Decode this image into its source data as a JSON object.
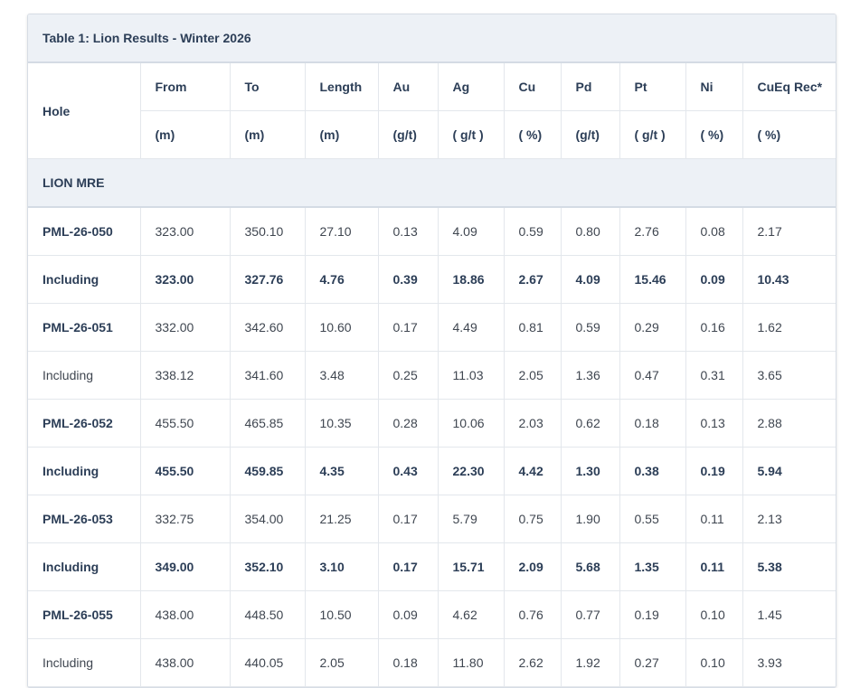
{
  "table": {
    "title": "Table 1: Lion Results - Winter 2026",
    "hole_header": "Hole",
    "columns": [
      {
        "name": "From",
        "unit": "(m)"
      },
      {
        "name": "To",
        "unit": "(m)"
      },
      {
        "name": "Length",
        "unit": "(m)"
      },
      {
        "name": "Au",
        "unit": "(g/t)"
      },
      {
        "name": "Ag",
        "unit": "( g/t )"
      },
      {
        "name": "Cu",
        "unit": "( %)"
      },
      {
        "name": "Pd",
        "unit": "(g/t)"
      },
      {
        "name": "Pt",
        "unit": "( g/t )"
      },
      {
        "name": "Ni",
        "unit": "( %)"
      },
      {
        "name": "CuEq Rec*",
        "unit": "( %)"
      }
    ],
    "section_label": "LION MRE",
    "rows": [
      {
        "hole": "PML-26-050",
        "bold": false,
        "values": [
          "323.00",
          "350.10",
          "27.10",
          "0.13",
          "4.09",
          "0.59",
          "0.80",
          "2.76",
          "0.08",
          "2.17"
        ]
      },
      {
        "hole": "Including",
        "bold": true,
        "values": [
          "323.00",
          "327.76",
          "4.76",
          "0.39",
          "18.86",
          "2.67",
          "4.09",
          "15.46",
          "0.09",
          "10.43"
        ]
      },
      {
        "hole": "PML-26-051",
        "bold": false,
        "values": [
          "332.00",
          "342.60",
          "10.60",
          "0.17",
          "4.49",
          "0.81",
          "0.59",
          "0.29",
          "0.16",
          "1.62"
        ]
      },
      {
        "hole": "Including",
        "bold": false,
        "plain": true,
        "values": [
          "338.12",
          "341.60",
          "3.48",
          "0.25",
          "11.03",
          "2.05",
          "1.36",
          "0.47",
          "0.31",
          "3.65"
        ]
      },
      {
        "hole": "PML-26-052",
        "bold": false,
        "values": [
          "455.50",
          "465.85",
          "10.35",
          "0.28",
          "10.06",
          "2.03",
          "0.62",
          "0.18",
          "0.13",
          "2.88"
        ]
      },
      {
        "hole": "Including",
        "bold": true,
        "values": [
          "455.50",
          "459.85",
          "4.35",
          "0.43",
          "22.30",
          "4.42",
          "1.30",
          "0.38",
          "0.19",
          "5.94"
        ]
      },
      {
        "hole": "PML-26-053",
        "bold": false,
        "values": [
          "332.75",
          "354.00",
          "21.25",
          "0.17",
          "5.79",
          "0.75",
          "1.90",
          "0.55",
          "0.11",
          "2.13"
        ]
      },
      {
        "hole": "Including",
        "bold": true,
        "values": [
          "349.00",
          "352.10",
          "3.10",
          "0.17",
          "15.71",
          "2.09",
          "5.68",
          "1.35",
          "0.11",
          "5.38"
        ]
      },
      {
        "hole": "PML-26-055",
        "bold": false,
        "values": [
          "438.00",
          "448.50",
          "10.50",
          "0.09",
          "4.62",
          "0.76",
          "0.77",
          "0.19",
          "0.10",
          "1.45"
        ]
      },
      {
        "hole": "Including",
        "bold": false,
        "plain": true,
        "values": [
          "438.00",
          "440.05",
          "2.05",
          "0.18",
          "11.80",
          "2.62",
          "1.92",
          "0.27",
          "0.10",
          "3.93"
        ]
      }
    ]
  }
}
